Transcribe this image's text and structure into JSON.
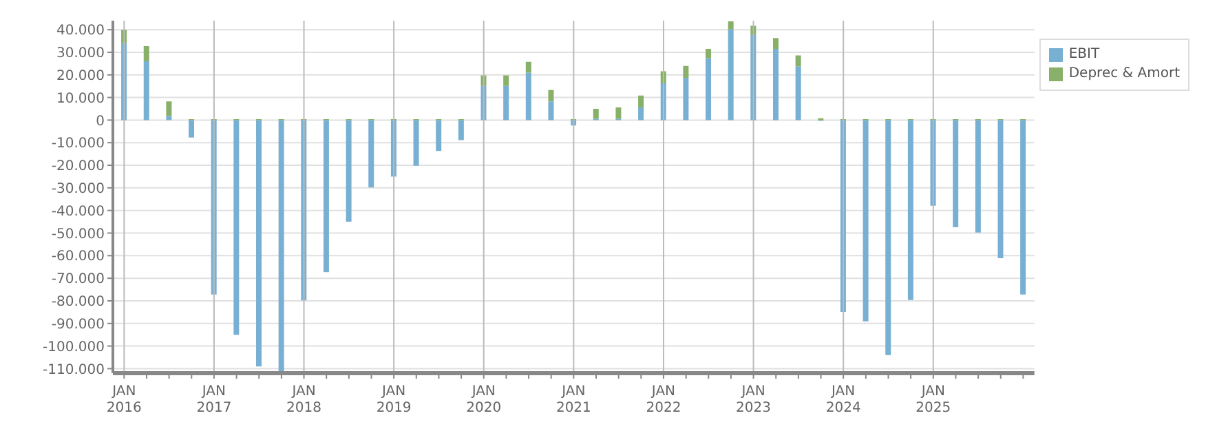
{
  "chart_data": {
    "type": "bar",
    "stacked": true,
    "grid": true,
    "legend": "top right",
    "categories": [
      "JAN 2016",
      null,
      null,
      null,
      "JAN 2017",
      null,
      null,
      null,
      "JAN 2018",
      null,
      null,
      null,
      "JAN 2019",
      null,
      null,
      null,
      "JAN 2020",
      null,
      null,
      null,
      "JAN 2021",
      null,
      null,
      null,
      "JAN 2022",
      null,
      null,
      null,
      "JAN 2023",
      null,
      null,
      null,
      "JAN 2024",
      null,
      null,
      null,
      "JAN 2025",
      null,
      null,
      null,
      null
    ],
    "series": [
      {
        "name": "EBIT",
        "color": "#78b0d4",
        "values": [
          34000,
          26000,
          1800,
          -7700,
          -77200,
          -95000,
          -109000,
          -112000,
          -79800,
          -67300,
          -45000,
          -29800,
          -25000,
          -20200,
          -13700,
          -8900,
          15100,
          15100,
          21000,
          8300,
          -2400,
          600,
          600,
          5600,
          16300,
          18700,
          27400,
          40100,
          37700,
          31500,
          23800,
          -300,
          -84900,
          -89100,
          -104000,
          -79600,
          -37900,
          -47400,
          -49800,
          -61100,
          -77200
        ]
      },
      {
        "name": "Deprec & Amort",
        "color": "#88b068",
        "values": [
          6000,
          6700,
          6500,
          400,
          400,
          400,
          400,
          400,
          400,
          400,
          400,
          400,
          400,
          400,
          400,
          400,
          4700,
          4700,
          4800,
          5000,
          400,
          4400,
          5000,
          5300,
          5300,
          5300,
          4100,
          3600,
          4000,
          4800,
          4800,
          800,
          400,
          400,
          400,
          400,
          400,
          400,
          400,
          400,
          400
        ]
      }
    ],
    "ylim": [
      -112000,
      44000
    ],
    "yticks": [
      {
        "value": 40000,
        "label": "40.000"
      },
      {
        "value": 30000,
        "label": "30.000"
      },
      {
        "value": 20000,
        "label": "20.000"
      },
      {
        "value": 10000,
        "label": "10.000"
      },
      0,
      {
        "value": -10000,
        "label": "-10.000"
      },
      {
        "value": -20000,
        "label": "-20.000"
      },
      {
        "value": -30000,
        "label": "-30.000"
      },
      {
        "value": -40000,
        "label": "-40.000"
      },
      {
        "value": -50000,
        "label": "-50.000"
      },
      {
        "value": -60000,
        "label": "-60.000"
      },
      {
        "value": -70000,
        "label": "-70.000"
      },
      {
        "value": -80000,
        "label": "-80.000"
      },
      {
        "value": -90000,
        "label": "-90.000"
      },
      {
        "value": -100000,
        "label": "-100.000"
      },
      {
        "value": -110000,
        "label": "-110.000"
      }
    ]
  }
}
